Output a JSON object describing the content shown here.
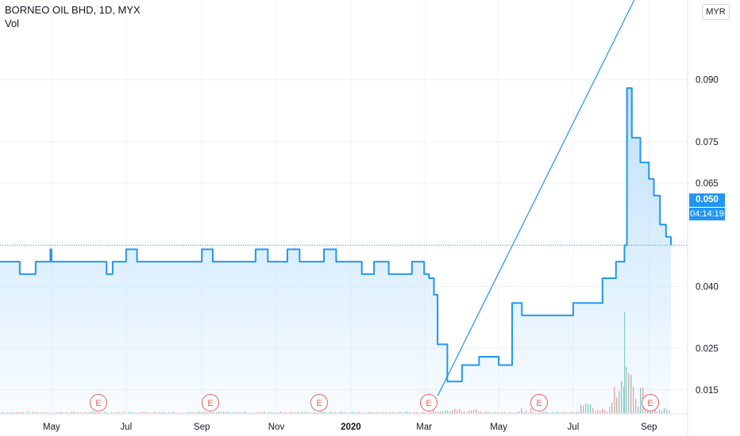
{
  "legend": {
    "title": "BORNEO OIL BHD, 1D, MYX",
    "volume_label": "Vol"
  },
  "currency": "MYR",
  "last_price": "0.050",
  "countdown": "04:14:19",
  "colors": {
    "line": "#2196f3",
    "area_top": "#b3dbfb",
    "grid": "#f0f3fa",
    "earnings": "#e85b5b",
    "volume_up": "#7fd0c8",
    "volume_down": "#f2a3a3"
  },
  "chart_data": {
    "type": "area",
    "title": "BORNEO OIL BHD, 1D, MYX",
    "xlabel": "",
    "ylabel": "",
    "ylim": [
      0.0092,
      0.1093
    ],
    "x_ticks": [
      "May",
      "Jul",
      "Sep",
      "Nov",
      "2020",
      "Mar",
      "May",
      "Jul",
      "Sep"
    ],
    "y_ticks": [
      "0.090",
      "0.075",
      "0.065",
      "0.050",
      "0.040",
      "0.025",
      "0.015"
    ],
    "grid": true,
    "earnings_markers": [
      "E",
      "E",
      "E",
      "E",
      "E",
      "E"
    ],
    "trendline": {
      "from": [
        "2020-03-12",
        0.0135
      ],
      "to": [
        "2020-08-20",
        0.1093
      ]
    },
    "series": [
      {
        "x": [
          "2019-03-25",
          "2019-04-05",
          "2019-04-18",
          "2019-04-30",
          "2019-05-01",
          "2019-05-15",
          "2019-06-01",
          "2019-06-15",
          "2019-06-20",
          "2019-07-01",
          "2019-07-10",
          "2019-07-20",
          "2019-08-01",
          "2019-08-20",
          "2019-09-01",
          "2019-09-10",
          "2019-09-20",
          "2019-10-01",
          "2019-10-15",
          "2019-10-25",
          "2019-11-01",
          "2019-11-10",
          "2019-11-20",
          "2019-12-01",
          "2019-12-10",
          "2019-12-20",
          "2020-01-02",
          "2020-01-10",
          "2020-01-20",
          "2020-02-01",
          "2020-02-10",
          "2020-02-20",
          "2020-03-01",
          "2020-03-05",
          "2020-03-09",
          "2020-03-12",
          "2020-03-20",
          "2020-04-01",
          "2020-04-15",
          "2020-05-01",
          "2020-05-12",
          "2020-05-20",
          "2020-06-01",
          "2020-06-15",
          "2020-07-01",
          "2020-07-15",
          "2020-07-25",
          "2020-08-05",
          "2020-08-12",
          "2020-08-14",
          "2020-08-18",
          "2020-08-25",
          "2020-09-01",
          "2020-09-05",
          "2020-09-10",
          "2020-09-15",
          "2020-09-19"
        ],
        "values": [
          0.046,
          0.043,
          0.046,
          0.049,
          0.046,
          0.046,
          0.046,
          0.043,
          0.046,
          0.049,
          0.046,
          0.046,
          0.046,
          0.046,
          0.049,
          0.046,
          0.046,
          0.046,
          0.049,
          0.046,
          0.046,
          0.049,
          0.046,
          0.046,
          0.049,
          0.046,
          0.046,
          0.043,
          0.046,
          0.043,
          0.043,
          0.046,
          0.043,
          0.042,
          0.038,
          0.026,
          0.017,
          0.021,
          0.023,
          0.021,
          0.036,
          0.033,
          0.033,
          0.033,
          0.036,
          0.036,
          0.042,
          0.046,
          0.05,
          0.088,
          0.076,
          0.07,
          0.066,
          0.062,
          0.055,
          0.052,
          0.05
        ]
      }
    ]
  }
}
